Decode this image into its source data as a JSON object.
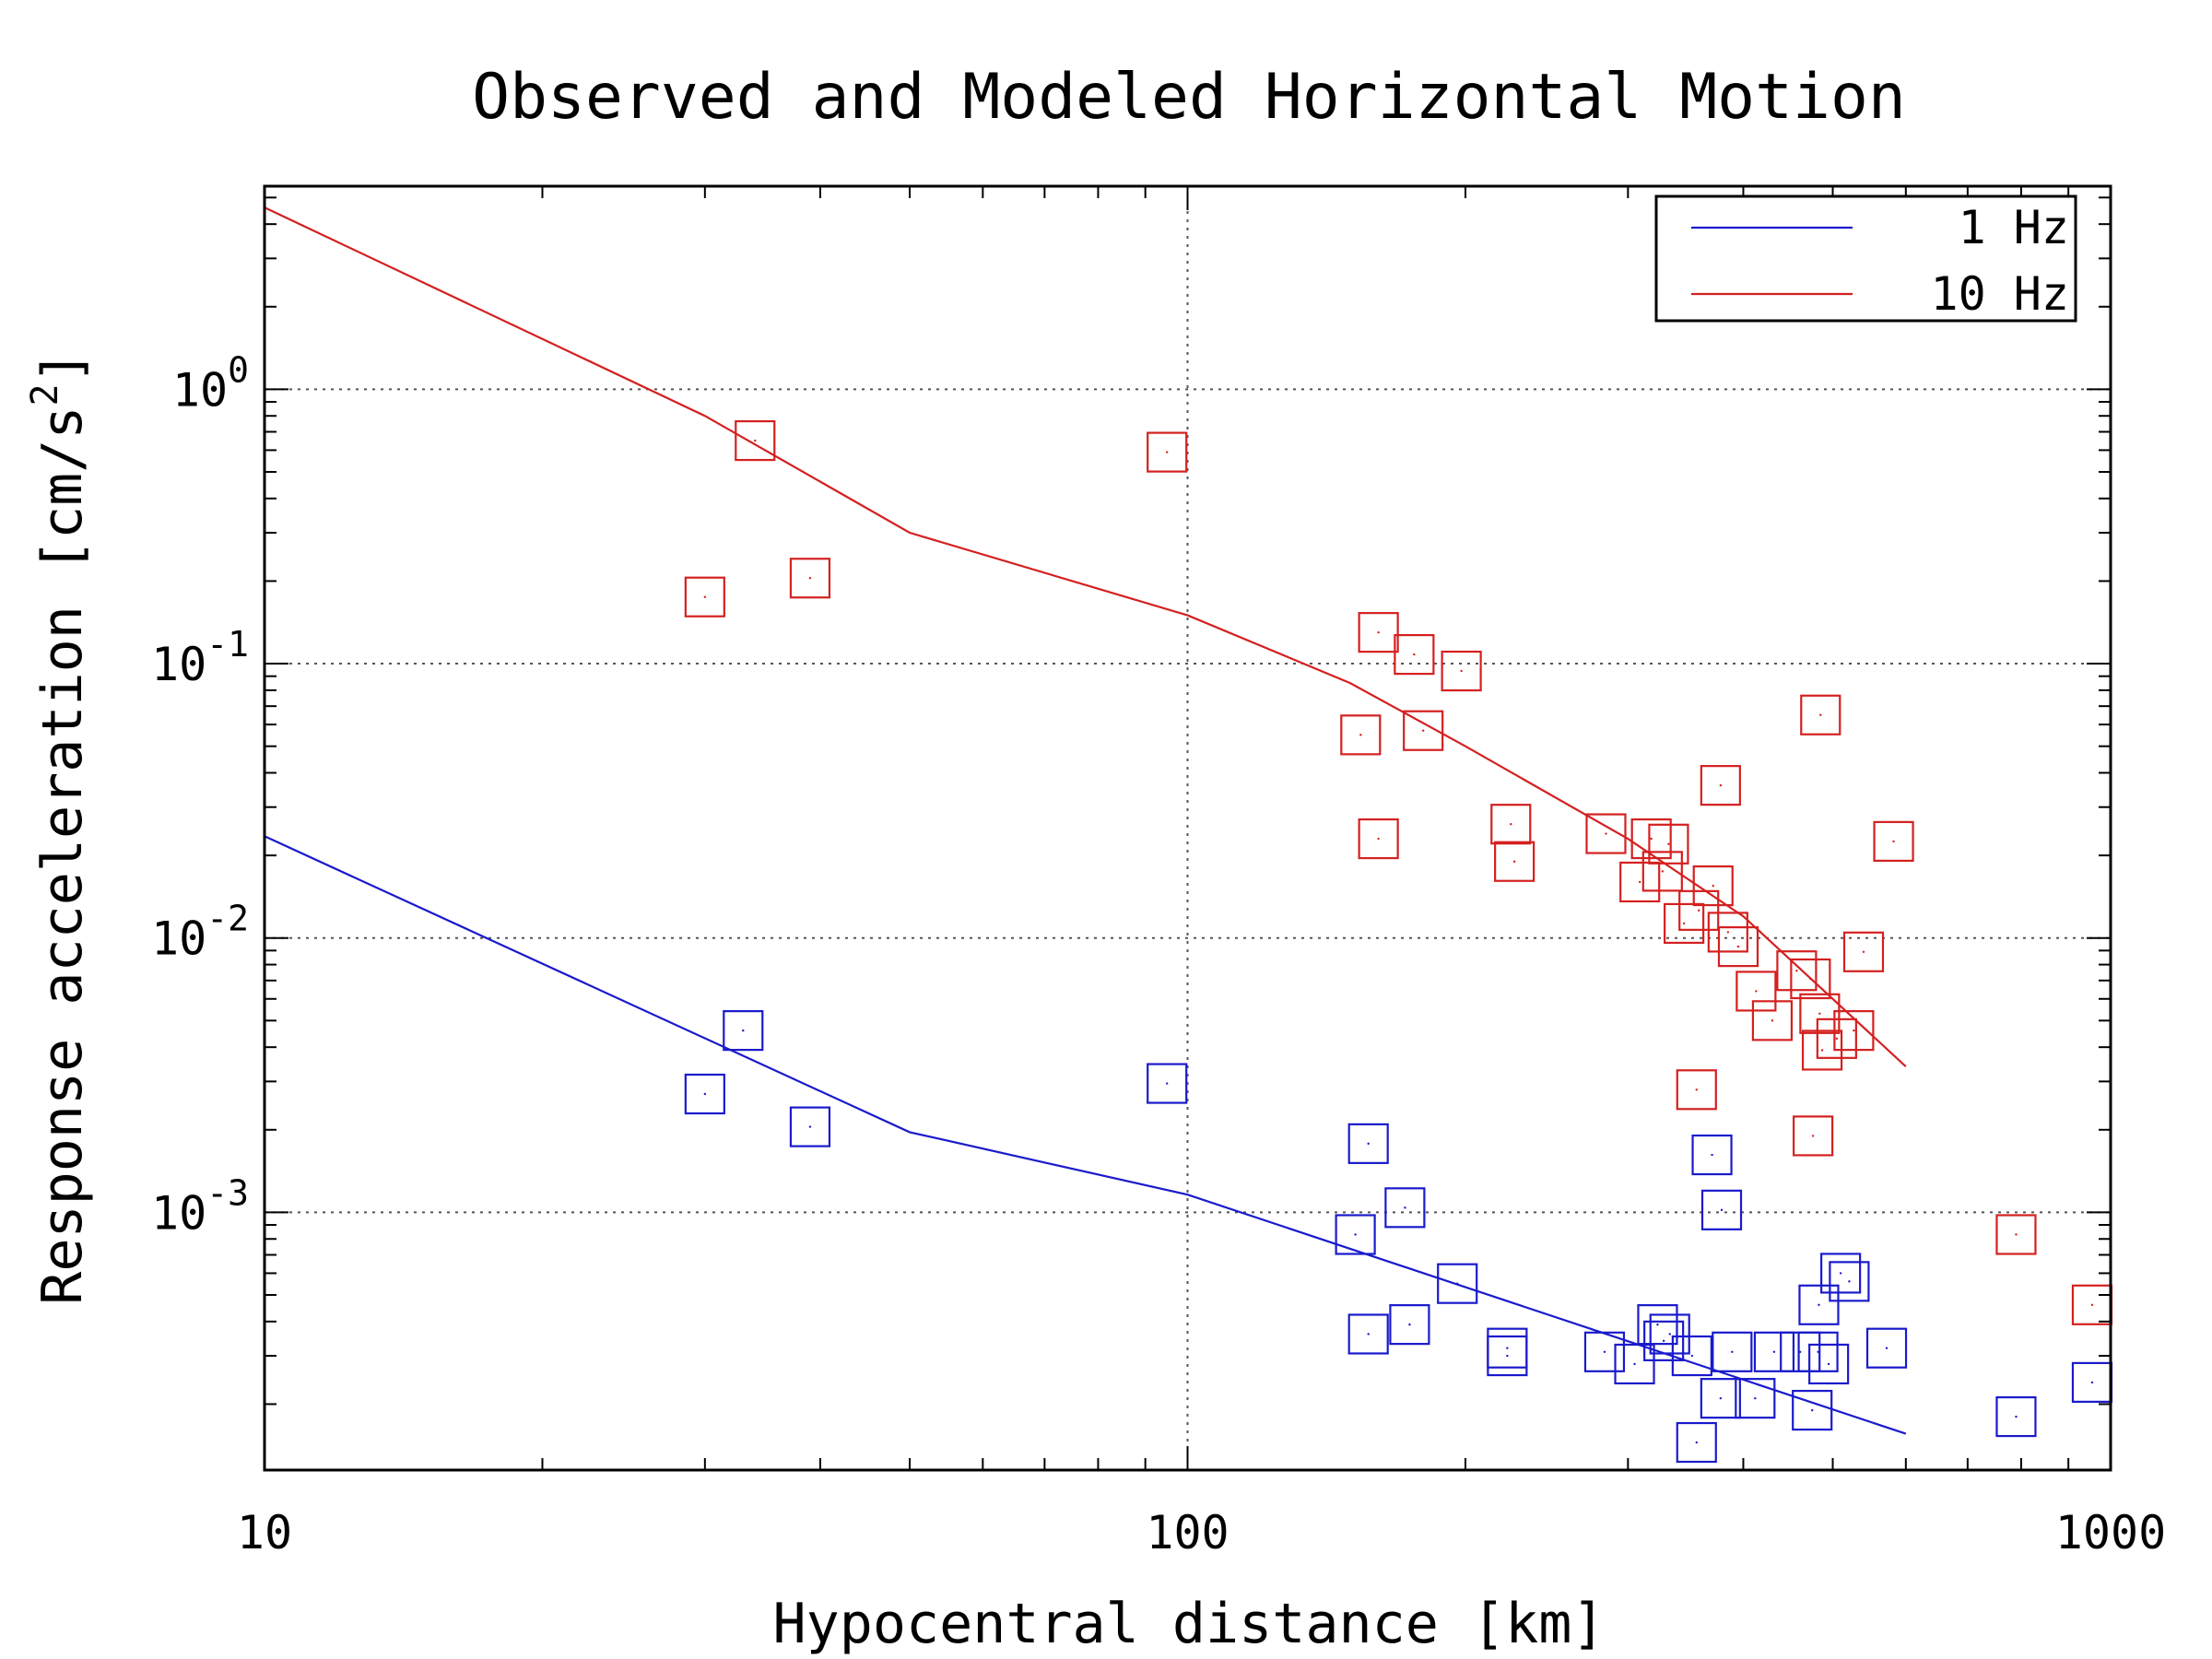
{
  "chart_data": {
    "type": "scatter",
    "title": "Observed and Modeled Horizontal Motion",
    "xlabel": "Hypocentral distance [km]",
    "ylabel": "Response acceleration [cm/s2]",
    "xscale": "log",
    "yscale": "log",
    "xlim": [
      10,
      1000
    ],
    "ylim": [
      0.000115,
      5.5
    ],
    "grid": true,
    "legend_position": "top-right",
    "x_tick_labels": [
      "10",
      "100",
      "1000"
    ],
    "y_tick_labels": [
      {
        "base": "10",
        "exp": "0",
        "value": 1
      },
      {
        "base": "10",
        "exp": "-1",
        "value": 0.1
      },
      {
        "base": "10",
        "exp": "-2",
        "value": 0.01
      },
      {
        "base": "10",
        "exp": "-3",
        "value": 0.001
      }
    ],
    "series": [
      {
        "name": "1 Hz",
        "color": "#1a1acc",
        "model_line": [
          [
            10,
            0.0235
          ],
          [
            50,
            0.00196
          ],
          [
            100,
            0.00116
          ],
          [
            600,
            0.000156
          ]
        ],
        "points": [
          [
            30,
            0.0027
          ],
          [
            33,
            0.0046
          ],
          [
            39,
            0.00205
          ],
          [
            95,
            0.00295
          ],
          [
            152,
            0.00083
          ],
          [
            157,
            0.00178
          ],
          [
            157,
            0.00036
          ],
          [
            172,
            0.00104
          ],
          [
            174,
            0.00039
          ],
          [
            196,
            0.00055
          ],
          [
            222,
            0.00032
          ],
          [
            222,
            0.0003
          ],
          [
            283,
            0.00031
          ],
          [
            305,
            0.00028
          ],
          [
            323,
            0.00039
          ],
          [
            328,
            0.00034
          ],
          [
            333,
            0.00036
          ],
          [
            352,
            0.0003
          ],
          [
            356,
            0.000145
          ],
          [
            370,
            0.00162
          ],
          [
            379,
            0.00102
          ],
          [
            378,
            0.00021
          ],
          [
            389,
            0.00031
          ],
          [
            412,
            0.00021
          ],
          [
            432,
            0.00031
          ],
          [
            461,
            0.00031
          ],
          [
            475,
            0.00019
          ],
          [
            483,
            0.00046
          ],
          [
            482,
            0.00031
          ],
          [
            495,
            0.00028
          ],
          [
            510,
            0.0006
          ],
          [
            521,
            0.00056
          ],
          [
            572,
            0.00032
          ],
          [
            790,
            0.00018
          ],
          [
            955,
            0.00024
          ]
        ]
      },
      {
        "name": "10 Hz",
        "color": "#d42020",
        "model_line": [
          [
            10,
            4.6
          ],
          [
            30,
            0.8
          ],
          [
            50,
            0.3
          ],
          [
            100,
            0.15
          ],
          [
            150,
            0.085
          ],
          [
            200,
            0.05
          ],
          [
            300,
            0.023
          ],
          [
            400,
            0.012
          ],
          [
            500,
            0.006
          ],
          [
            600,
            0.0034
          ]
        ],
        "points": [
          [
            30,
            0.175
          ],
          [
            34,
            0.65
          ],
          [
            39,
            0.205
          ],
          [
            95,
            0.59
          ],
          [
            154,
            0.055
          ],
          [
            161,
            0.13
          ],
          [
            161,
            0.023
          ],
          [
            176,
            0.108
          ],
          [
            180,
            0.057
          ],
          [
            198,
            0.094
          ],
          [
            224,
            0.026
          ],
          [
            226,
            0.019
          ],
          [
            284,
            0.024
          ],
          [
            309,
            0.016
          ],
          [
            318,
            0.023
          ],
          [
            327,
            0.0175
          ],
          [
            332,
            0.022
          ],
          [
            345,
            0.0113
          ],
          [
            356,
            0.0028
          ],
          [
            358,
            0.0126
          ],
          [
            371,
            0.0155
          ],
          [
            378,
            0.036
          ],
          [
            385,
            0.0105
          ],
          [
            395,
            0.0093
          ],
          [
            413,
            0.0064
          ],
          [
            430,
            0.005
          ],
          [
            457,
            0.0076
          ],
          [
            473,
            0.0071
          ],
          [
            476,
            0.0019
          ],
          [
            485,
            0.065
          ],
          [
            484,
            0.0053
          ],
          [
            487,
            0.0039
          ],
          [
            505,
            0.0043
          ],
          [
            527,
            0.0046
          ],
          [
            540,
            0.0089
          ],
          [
            582,
            0.0225
          ],
          [
            790,
            0.00083
          ],
          [
            955,
            0.00046
          ]
        ]
      }
    ],
    "legend": [
      {
        "label": "1 Hz",
        "color": "#1a1acc"
      },
      {
        "label": "10 Hz",
        "color": "#d42020"
      }
    ]
  }
}
